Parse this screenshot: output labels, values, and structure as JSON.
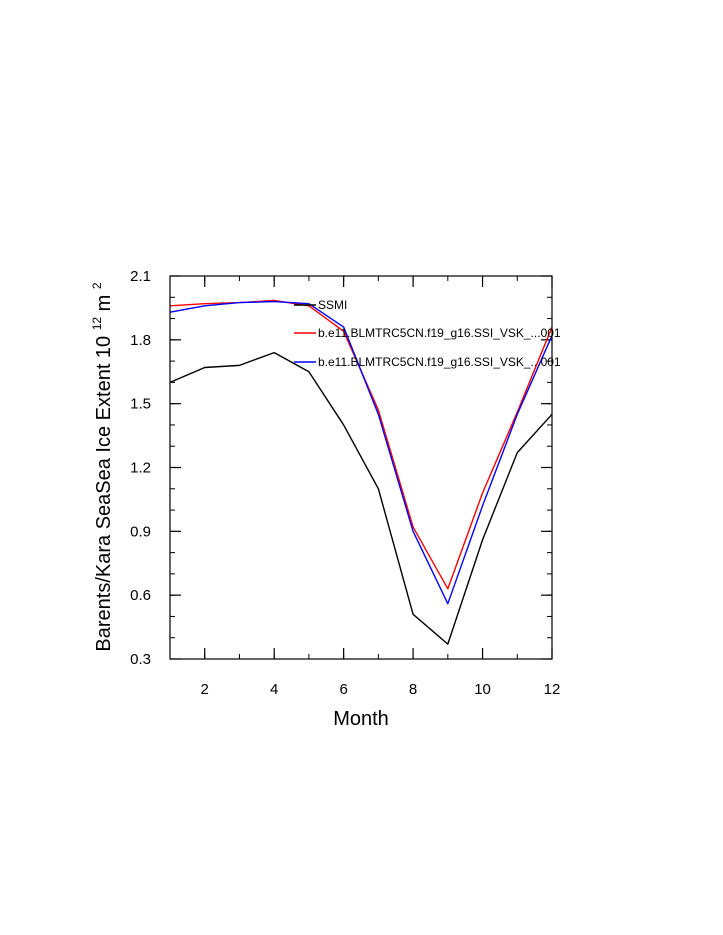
{
  "chart_data": {
    "type": "line",
    "title": "",
    "xlabel": "Month",
    "ylabel_main": "Barents/Kara SeaSea Ice Extent 10",
    "ylabel_exp1": "12",
    "ylabel_unit": " m",
    "ylabel_exp2": "2",
    "xlim": [
      1,
      12
    ],
    "ylim": [
      0.3,
      2.1
    ],
    "x_ticks": [
      2,
      4,
      6,
      8,
      10,
      12
    ],
    "x_tick_labels": [
      "2",
      "4",
      "6",
      "8",
      "10",
      "12"
    ],
    "y_ticks": [
      0.3,
      0.6,
      0.9,
      1.2,
      1.5,
      1.8,
      2.1
    ],
    "y_tick_labels": [
      "0.3",
      "0.6",
      "0.9",
      "1.2",
      "1.5",
      "1.8",
      "2.1"
    ],
    "x": [
      1,
      2,
      3,
      4,
      5,
      6,
      7,
      8,
      9,
      10,
      11,
      12
    ],
    "legend_position": "top-right inside",
    "series": [
      {
        "name": "SSMI",
        "color": "#000000",
        "values": [
          1.6,
          1.67,
          1.68,
          1.74,
          1.65,
          1.4,
          1.1,
          0.51,
          0.37,
          0.86,
          1.27,
          1.45
        ]
      },
      {
        "name": "b.e11.BLMTRC5CN.f19_g16.SSI_VSK_...001",
        "color": "#ff0000",
        "values": [
          1.96,
          1.97,
          1.975,
          1.985,
          1.96,
          1.84,
          1.47,
          0.92,
          0.63,
          1.08,
          1.46,
          1.86
        ]
      },
      {
        "name": "b.e11.BLMTRC5CN.f19_g16.SSI_VSK_...001",
        "color": "#0000ff",
        "values": [
          1.93,
          1.96,
          1.975,
          1.98,
          1.97,
          1.86,
          1.45,
          0.9,
          0.56,
          1.02,
          1.45,
          1.82
        ]
      }
    ]
  }
}
